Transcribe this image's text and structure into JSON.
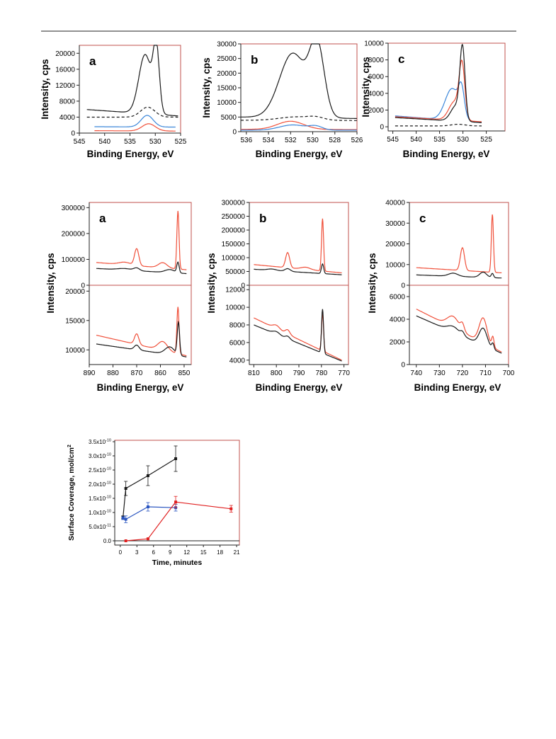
{
  "colors": {
    "black": "#1a1a1a",
    "red": "#f0503a",
    "blue": "#3b86d9",
    "frame": "#c0504d",
    "sc_red": "#e02020",
    "sc_blue": "#2a55c0"
  },
  "chart_data": [
    {
      "id": "o1s-a",
      "type": "line",
      "label": "a",
      "xlabel": "Binding Energy, eV",
      "ylabel": "Intensity, cps",
      "xlim": [
        545,
        525
      ],
      "ylim": [
        0,
        22000
      ],
      "xticks": [
        545,
        540,
        535,
        530,
        525
      ],
      "yticks": [
        0,
        4000,
        8000,
        12000,
        16000,
        20000
      ],
      "series": [
        {
          "color": "black",
          "style": "solid",
          "baseline": 5900,
          "baseline_end": 4300,
          "x_start": 543.5,
          "x_end": 525.5,
          "peaks": [
            {
              "center": 532.0,
              "height": 14800,
              "width": 1.25
            },
            {
              "center": 529.8,
              "height": 15600,
              "width": 0.6
            }
          ]
        },
        {
          "color": "black",
          "style": "dashed",
          "baseline": 4000,
          "baseline_end": 4000,
          "x_start": 543.5,
          "x_end": 525.5,
          "peaks": [
            {
              "center": 531.5,
              "height": 2500,
              "width": 1.4
            }
          ]
        },
        {
          "color": "blue",
          "style": "solid",
          "baseline": 1600,
          "baseline_end": 1500,
          "x_start": 542,
          "x_end": 526,
          "peaks": [
            {
              "center": 531.6,
              "height": 2900,
              "width": 1.2
            }
          ]
        },
        {
          "color": "red",
          "style": "solid",
          "baseline": 600,
          "baseline_end": 500,
          "x_start": 542,
          "x_end": 526,
          "peaks": [
            {
              "center": 531.3,
              "height": 1800,
              "width": 1.3
            }
          ]
        }
      ]
    },
    {
      "id": "o1s-b",
      "type": "line",
      "label": "b",
      "xlabel": "Binding Energy, eV",
      "ylabel": "Intensity, cps",
      "xlim": [
        536.5,
        526
      ],
      "ylim": [
        0,
        30000
      ],
      "xticks": [
        536,
        534,
        532,
        530,
        528,
        526
      ],
      "yticks": [
        0,
        5000,
        10000,
        15000,
        20000,
        25000,
        30000
      ],
      "series": [
        {
          "color": "black",
          "style": "solid",
          "baseline": 5000,
          "baseline_end": 4500,
          "x_start": 536.5,
          "x_end": 526,
          "peaks": [
            {
              "center": 531.8,
              "height": 22000,
              "width": 1.2
            },
            {
              "center": 529.6,
              "height": 23500,
              "width": 0.65
            }
          ]
        },
        {
          "color": "black",
          "style": "dashed",
          "baseline": 3900,
          "baseline_end": 3800,
          "x_start": 536.5,
          "x_end": 526,
          "peaks": [
            {
              "center": 531.5,
              "height": 1200,
              "width": 1.5
            },
            {
              "center": 529.7,
              "height": 800,
              "width": 0.7
            }
          ]
        },
        {
          "color": "red",
          "style": "solid",
          "baseline": 800,
          "baseline_end": 700,
          "x_start": 536.5,
          "x_end": 526,
          "peaks": [
            {
              "center": 532.0,
              "height": 2800,
              "width": 1.2
            }
          ]
        },
        {
          "color": "blue",
          "style": "solid",
          "baseline": 500,
          "baseline_end": 500,
          "x_start": 536.5,
          "x_end": 526,
          "peaks": [
            {
              "center": 531.8,
              "height": 1800,
              "width": 1.2
            },
            {
              "center": 529.7,
              "height": 1200,
              "width": 0.6
            }
          ]
        }
      ]
    },
    {
      "id": "o1s-c",
      "type": "line",
      "label": "c",
      "xlabel": "Binding Energy, eV",
      "ylabel": "Intensity, cps",
      "xlim": [
        546,
        521
      ],
      "ylim": [
        -500,
        10000
      ],
      "xticks": [
        545,
        540,
        535,
        530,
        525
      ],
      "yticks": [
        0,
        2000,
        4000,
        6000,
        8000,
        10000
      ],
      "series": [
        {
          "color": "blue",
          "style": "solid",
          "baseline": 1300,
          "baseline_end": 500,
          "x_start": 544.5,
          "x_end": 526,
          "peaks": [
            {
              "center": 532.3,
              "height": 3800,
              "width": 1.5
            },
            {
              "center": 530.3,
              "height": 3000,
              "width": 0.6
            }
          ]
        },
        {
          "color": "red",
          "style": "solid",
          "baseline": 1200,
          "baseline_end": 600,
          "x_start": 544.5,
          "x_end": 526,
          "peaks": [
            {
              "center": 531.8,
              "height": 2200,
              "width": 1.2
            },
            {
              "center": 530.2,
              "height": 6300,
              "width": 0.6
            }
          ]
        },
        {
          "color": "black",
          "style": "solid",
          "baseline": 1100,
          "baseline_end": 500,
          "x_start": 544.5,
          "x_end": 526,
          "peaks": [
            {
              "center": 531.5,
              "height": 1800,
              "width": 1.1
            },
            {
              "center": 530.1,
              "height": 8400,
              "width": 0.55
            }
          ]
        },
        {
          "color": "black",
          "style": "dashed",
          "baseline": 100,
          "baseline_end": 100,
          "x_start": 544.5,
          "x_end": 526,
          "peaks": [
            {
              "center": 531,
              "height": 200,
              "width": 1.5
            }
          ]
        }
      ]
    },
    {
      "id": "metal-a-top",
      "type": "line",
      "label": "a",
      "xlabel": "",
      "ylabel": "",
      "xlim": [
        890,
        847
      ],
      "ylim": [
        0,
        320000
      ],
      "xticks": [],
      "yticks": [
        0,
        100000,
        200000,
        300000
      ],
      "series": [
        {
          "color": "red",
          "style": "solid",
          "baseline": 88000,
          "baseline_end": 60000,
          "x_start": 887,
          "x_end": 849,
          "peaks": [
            {
              "center": 870,
              "height": 65000,
              "width": 0.9
            },
            {
              "center": 875,
              "height": 10000,
              "width": 2.5
            },
            {
              "center": 859,
              "height": 20000,
              "width": 1.8
            },
            {
              "center": 852.6,
              "height": 225000,
              "width": 0.45
            }
          ]
        },
        {
          "color": "black",
          "style": "solid",
          "baseline": 65000,
          "baseline_end": 45000,
          "x_start": 887,
          "x_end": 849,
          "peaks": [
            {
              "center": 870,
              "height": 10000,
              "width": 1.2
            },
            {
              "center": 875,
              "height": 6000,
              "width": 3
            },
            {
              "center": 856,
              "height": 12000,
              "width": 2
            },
            {
              "center": 852.6,
              "height": 40000,
              "width": 0.5
            }
          ]
        }
      ]
    },
    {
      "id": "metal-a-bot",
      "type": "line",
      "label": "",
      "xlabel": "Binding Energy, eV",
      "ylabel": "",
      "xlim": [
        890,
        847
      ],
      "ylim": [
        7500,
        21000
      ],
      "xticks": [
        890,
        880,
        870,
        860,
        850
      ],
      "yticks": [
        10000,
        15000,
        20000
      ],
      "series": [
        {
          "color": "red",
          "style": "solid",
          "baseline": 12500,
          "baseline_end": 9000,
          "x_start": 887,
          "x_end": 849,
          "peaks": [
            {
              "center": 870,
              "height": 1800,
              "width": 0.9
            },
            {
              "center": 859,
              "height": 1500,
              "width": 2
            },
            {
              "center": 852.6,
              "height": 8000,
              "width": 0.45
            }
          ]
        },
        {
          "color": "black",
          "style": "solid",
          "baseline": 11000,
          "baseline_end": 8800,
          "x_start": 887,
          "x_end": 849,
          "peaks": [
            {
              "center": 870,
              "height": 800,
              "width": 1
            },
            {
              "center": 856,
              "height": 1300,
              "width": 2
            },
            {
              "center": 852.4,
              "height": 5500,
              "width": 0.5
            }
          ]
        }
      ]
    },
    {
      "id": "metal-b-top",
      "type": "line",
      "label": "b",
      "xlabel": "",
      "ylabel": "",
      "xlim": [
        812,
        768
      ],
      "ylim": [
        0,
        300000
      ],
      "xticks": [],
      "yticks": [
        0,
        50000,
        100000,
        150000,
        200000,
        250000,
        300000
      ],
      "series": [
        {
          "color": "red",
          "style": "solid",
          "baseline": 75000,
          "baseline_end": 45000,
          "x_start": 810,
          "x_end": 771,
          "peaks": [
            {
              "center": 795,
              "height": 55000,
              "width": 0.9
            },
            {
              "center": 787,
              "height": 8000,
              "width": 2
            },
            {
              "center": 779.5,
              "height": 190000,
              "width": 0.45
            }
          ]
        },
        {
          "color": "black",
          "style": "solid",
          "baseline": 58000,
          "baseline_end": 38000,
          "x_start": 810,
          "x_end": 771,
          "peaks": [
            {
              "center": 795,
              "height": 10000,
              "width": 1.2
            },
            {
              "center": 802,
              "height": 5000,
              "width": 2
            },
            {
              "center": 779.5,
              "height": 35000,
              "width": 0.5
            }
          ]
        }
      ]
    },
    {
      "id": "metal-b-bot",
      "type": "line",
      "label": "",
      "xlabel": "Binding Energy, eV",
      "ylabel": "",
      "xlim": [
        812,
        768
      ],
      "ylim": [
        3500,
        12500
      ],
      "xticks": [
        810,
        800,
        790,
        780,
        770
      ],
      "yticks": [
        4000,
        6000,
        8000,
        10000,
        12000
      ],
      "series": [
        {
          "color": "red",
          "style": "solid",
          "baseline": 8800,
          "baseline_end": 4000,
          "x_start": 810,
          "x_end": 771,
          "peaks": [
            {
              "center": 800,
              "height": 400,
              "width": 1.5
            },
            {
              "center": 795,
              "height": 500,
              "width": 1
            },
            {
              "center": 779.5,
              "height": 4200,
              "width": 0.45
            }
          ]
        },
        {
          "color": "black",
          "style": "solid",
          "baseline": 8000,
          "baseline_end": 3900,
          "x_start": 810,
          "x_end": 771,
          "peaks": [
            {
              "center": 800,
              "height": 300,
              "width": 1.5
            },
            {
              "center": 795,
              "height": 300,
              "width": 1
            },
            {
              "center": 779.5,
              "height": 5000,
              "width": 0.45
            }
          ]
        }
      ]
    },
    {
      "id": "metal-c-top",
      "type": "line",
      "label": "c",
      "xlabel": "",
      "ylabel": "",
      "xlim": [
        743,
        700
      ],
      "ylim": [
        0,
        40000
      ],
      "xticks": [],
      "yticks": [
        0,
        10000,
        20000,
        30000,
        40000
      ],
      "series": [
        {
          "color": "red",
          "style": "solid",
          "baseline": 8500,
          "baseline_end": 6000,
          "x_start": 740,
          "x_end": 703,
          "peaks": [
            {
              "center": 720,
              "height": 11000,
              "width": 0.9
            },
            {
              "center": 707,
              "height": 28000,
              "width": 0.45
            }
          ]
        },
        {
          "color": "black",
          "style": "solid",
          "baseline": 5000,
          "baseline_end": 3500,
          "x_start": 740,
          "x_end": 703,
          "peaks": [
            {
              "center": 724,
              "height": 1500,
              "width": 2
            },
            {
              "center": 711,
              "height": 2500,
              "width": 1.5
            },
            {
              "center": 707,
              "height": 2000,
              "width": 0.5
            }
          ]
        }
      ]
    },
    {
      "id": "metal-c-bot",
      "type": "line",
      "label": "",
      "xlabel": "Binding Energy, eV",
      "ylabel": "",
      "xlim": [
        743,
        700
      ],
      "ylim": [
        0,
        7000
      ],
      "xticks": [
        740,
        730,
        720,
        710,
        700
      ],
      "yticks": [
        0,
        2000,
        4000,
        6000
      ],
      "series": [
        {
          "color": "red",
          "style": "solid",
          "baseline": 4900,
          "baseline_end": 1100,
          "x_start": 740,
          "x_end": 703,
          "peaks": [
            {
              "center": 724,
              "height": 1000,
              "width": 2.5
            },
            {
              "center": 720,
              "height": 600,
              "width": 0.8
            },
            {
              "center": 711,
              "height": 2200,
              "width": 1.7
            },
            {
              "center": 706.8,
              "height": 900,
              "width": 0.5
            }
          ]
        },
        {
          "color": "black",
          "style": "solid",
          "baseline": 4300,
          "baseline_end": 1000,
          "x_start": 740,
          "x_end": 703,
          "peaks": [
            {
              "center": 724,
              "height": 500,
              "width": 2.5
            },
            {
              "center": 720,
              "height": 300,
              "width": 0.8
            },
            {
              "center": 711,
              "height": 1500,
              "width": 1.7
            },
            {
              "center": 706.8,
              "height": 500,
              "width": 0.5
            }
          ]
        }
      ]
    },
    {
      "id": "coverage",
      "type": "scatter",
      "xlabel": "Time, minutes",
      "ylabel": "Surface Coverage, mol/cm",
      "ylabel_sup": "2",
      "xlim": [
        -1,
        21.5
      ],
      "ylim": [
        -0.15,
        3.55
      ],
      "xticks": [
        "0",
        "3",
        "6",
        "9",
        "12",
        "15",
        "18",
        "21"
      ],
      "xtick_values": [
        0,
        3,
        6,
        9,
        12,
        15,
        18,
        21
      ],
      "ytick_values": [
        0,
        0.5,
        1.0,
        1.5,
        2.0,
        2.5,
        3.0,
        3.5
      ],
      "ytick_labels": [
        {
          "m": "0.0",
          "e": ""
        },
        {
          "m": "5.0x10",
          "e": "-11"
        },
        {
          "m": "1.0x10",
          "e": "-10"
        },
        {
          "m": "1.5x10",
          "e": "-10"
        },
        {
          "m": "2.0x10",
          "e": "-10"
        },
        {
          "m": "2.5x10",
          "e": "-10"
        },
        {
          "m": "3.0x10",
          "e": "-10"
        },
        {
          "m": "3.5x10",
          "e": "-10"
        }
      ],
      "series": [
        {
          "color": "black",
          "x": [
            0.5,
            1,
            5,
            10
          ],
          "y": [
            0.83,
            1.85,
            2.3,
            2.9
          ],
          "err": [
            0.05,
            0.25,
            0.35,
            0.45
          ]
        },
        {
          "color": "blue",
          "x": [
            0.5,
            1,
            5,
            10
          ],
          "y": [
            0.8,
            0.76,
            1.2,
            1.17
          ],
          "err": [
            0.05,
            0.12,
            0.15,
            0.12
          ]
        },
        {
          "color": "red",
          "x": [
            1,
            5,
            10,
            20
          ],
          "y": [
            0.0,
            0.07,
            1.37,
            1.13
          ],
          "err": [
            0.0,
            0.0,
            0.2,
            0.12
          ]
        }
      ]
    }
  ]
}
